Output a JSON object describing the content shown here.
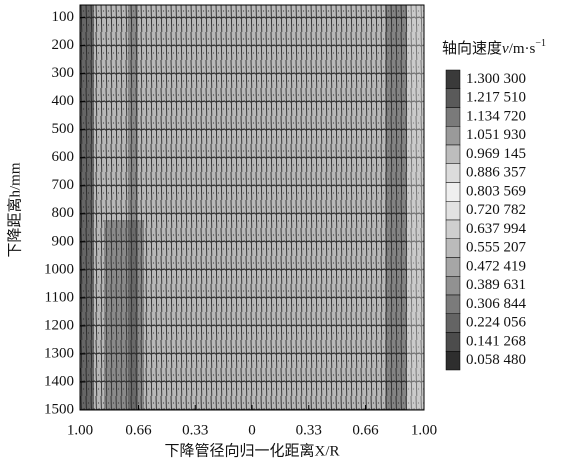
{
  "chart_data": {
    "type": "contour",
    "xlabel": "下降管径向归一化距离X/R",
    "ylabel": "下降距离h/mm",
    "colorbar_title": [
      "轴向速度",
      "v",
      "/m·s",
      "−1"
    ],
    "xlim": [
      -1,
      1
    ],
    "xticks": [
      {
        "value": -1,
        "label": "1.00"
      },
      {
        "value": -0.66,
        "label": "0.66"
      },
      {
        "value": -0.33,
        "label": "0.33"
      },
      0,
      0.33,
      0.66,
      {
        "value": 1,
        "label": "1.00"
      }
    ],
    "ylim": [
      55,
      1500
    ],
    "y_inverted": true,
    "yticks": [
      100,
      200,
      300,
      400,
      500,
      600,
      700,
      800,
      900,
      1000,
      1100,
      1200,
      1300,
      1400,
      1500
    ],
    "levels": [
      {
        "value": 1.3003,
        "label": "1.300 300"
      },
      {
        "value": 1.21751,
        "label": "1.217 510"
      },
      {
        "value": 1.13472,
        "label": "1.134 720"
      },
      {
        "value": 1.05193,
        "label": "1.051 930"
      },
      {
        "value": 0.969145,
        "label": "0.969 145"
      },
      {
        "value": 0.886357,
        "label": "0.886 357"
      },
      {
        "value": 0.803569,
        "label": "0.803 569"
      },
      {
        "value": 0.720782,
        "label": "0.720 782"
      },
      {
        "value": 0.637994,
        "label": "0.637 994"
      },
      {
        "value": 0.555207,
        "label": "0.555 207"
      },
      {
        "value": 0.472419,
        "label": "0.472 419"
      },
      {
        "value": 0.389631,
        "label": "0.389 631"
      },
      {
        "value": 0.306844,
        "label": "0.306 844"
      },
      {
        "value": 0.224056,
        "label": "0.224 056"
      },
      {
        "value": 0.141268,
        "label": "0.141 268"
      },
      {
        "value": 0.05848,
        "label": "0.058 480"
      }
    ],
    "level_colors": [
      "#3a3a3a",
      "#5a5a5a",
      "#7a7a7a",
      "#9a9a9a",
      "#bdbdbd",
      "#dcdcdc",
      "#efefef",
      "#e2e2e2",
      "#cfcfcf",
      "#bbbbbb",
      "#a6a6a6",
      "#919191",
      "#7b7b7b",
      "#646464",
      "#4c4c4c",
      "#2e2e2e"
    ]
  }
}
